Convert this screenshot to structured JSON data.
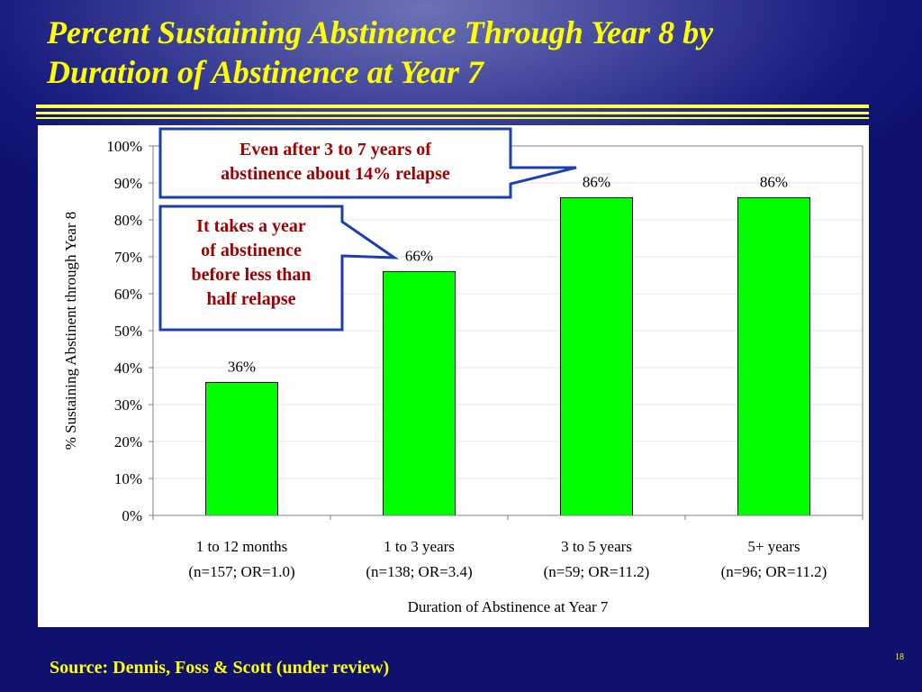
{
  "slide": {
    "title_line1": "Percent Sustaining Abstinence Through Year 8 by",
    "title_line2": "Duration of Abstinence at Year 7",
    "source": "Source: Dennis, Foss & Scott (under review)",
    "slide_number": "18",
    "colors": {
      "background": "#14187a",
      "title": "#ffff00",
      "rule": "#ffff4a",
      "callout_border": "#1a3fb0",
      "callout_text": "#a00000"
    }
  },
  "callouts": {
    "top_line1": "Even after 3 to 7 years of",
    "top_line2": "abstinence about 14% relapse",
    "left_line1": "It takes a year",
    "left_line2": "of abstinence",
    "left_line3": "before less than",
    "left_line4": "half relapse"
  },
  "chart_data": {
    "type": "bar",
    "categories": [
      [
        "1 to 12 months",
        "(n=157; OR=1.0)"
      ],
      [
        "1 to 3 years",
        "(n=138; OR=3.4)"
      ],
      [
        "3 to 5 years",
        "(n=59; OR=11.2)"
      ],
      [
        "5+ years",
        "(n=96; OR=11.2)"
      ]
    ],
    "values": [
      36,
      66,
      86,
      86
    ],
    "data_labels": [
      "36%",
      "66%",
      "86%",
      "86%"
    ],
    "xlabel": "Duration of Abstinence at Year 7",
    "ylabel": "% Sustaining Abstinent through Year 8",
    "ylim": [
      0,
      100
    ],
    "yticks": [
      "0%",
      "10%",
      "20%",
      "30%",
      "40%",
      "50%",
      "60%",
      "70%",
      "80%",
      "90%",
      "100%"
    ],
    "ytick_values": [
      0,
      10,
      20,
      30,
      40,
      50,
      60,
      70,
      80,
      90,
      100
    ],
    "bar_color": "#00ff00",
    "bar_edge": "#000000",
    "grid": true
  }
}
